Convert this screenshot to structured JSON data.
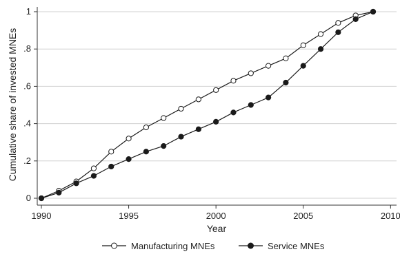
{
  "chart_data": {
    "type": "line",
    "title": "",
    "xlabel": "Year",
    "ylabel": "Cumulative share of invested MNEs",
    "xlim": [
      1990,
      2010
    ],
    "ylim": [
      0,
      1
    ],
    "grid": "horizontal",
    "legend": "bottom",
    "x": [
      1990,
      1991,
      1992,
      1993,
      1994,
      1995,
      1996,
      1997,
      1998,
      1999,
      2000,
      2001,
      2002,
      2003,
      2004,
      2005,
      2006,
      2007,
      2008,
      2009
    ],
    "x_ticks": [
      "1990",
      "1995",
      "2000",
      "2005",
      "2010"
    ],
    "x_tick_values": [
      1990,
      1995,
      2000,
      2005,
      2010
    ],
    "y_ticks": [
      "0",
      ".2",
      ".4",
      ".6",
      ".8",
      "1"
    ],
    "y_tick_values": [
      0,
      0.2,
      0.4,
      0.6,
      0.8,
      1
    ],
    "series": [
      {
        "name": "Manufacturing MNEs",
        "marker": "hollow-circle",
        "values": [
          0.0,
          0.04,
          0.09,
          0.16,
          0.25,
          0.32,
          0.38,
          0.43,
          0.48,
          0.53,
          0.58,
          0.63,
          0.67,
          0.71,
          0.75,
          0.82,
          0.88,
          0.94,
          0.98,
          1.0
        ]
      },
      {
        "name": "Service MNEs",
        "marker": "filled-circle",
        "values": [
          0.0,
          0.03,
          0.08,
          0.12,
          0.17,
          0.21,
          0.25,
          0.28,
          0.33,
          0.37,
          0.41,
          0.46,
          0.5,
          0.54,
          0.62,
          0.71,
          0.8,
          0.89,
          0.96,
          1.0
        ]
      }
    ],
    "colors": {
      "line": "#1a1a1a",
      "grid": "#d0d0d0",
      "axis": "#333333"
    }
  }
}
